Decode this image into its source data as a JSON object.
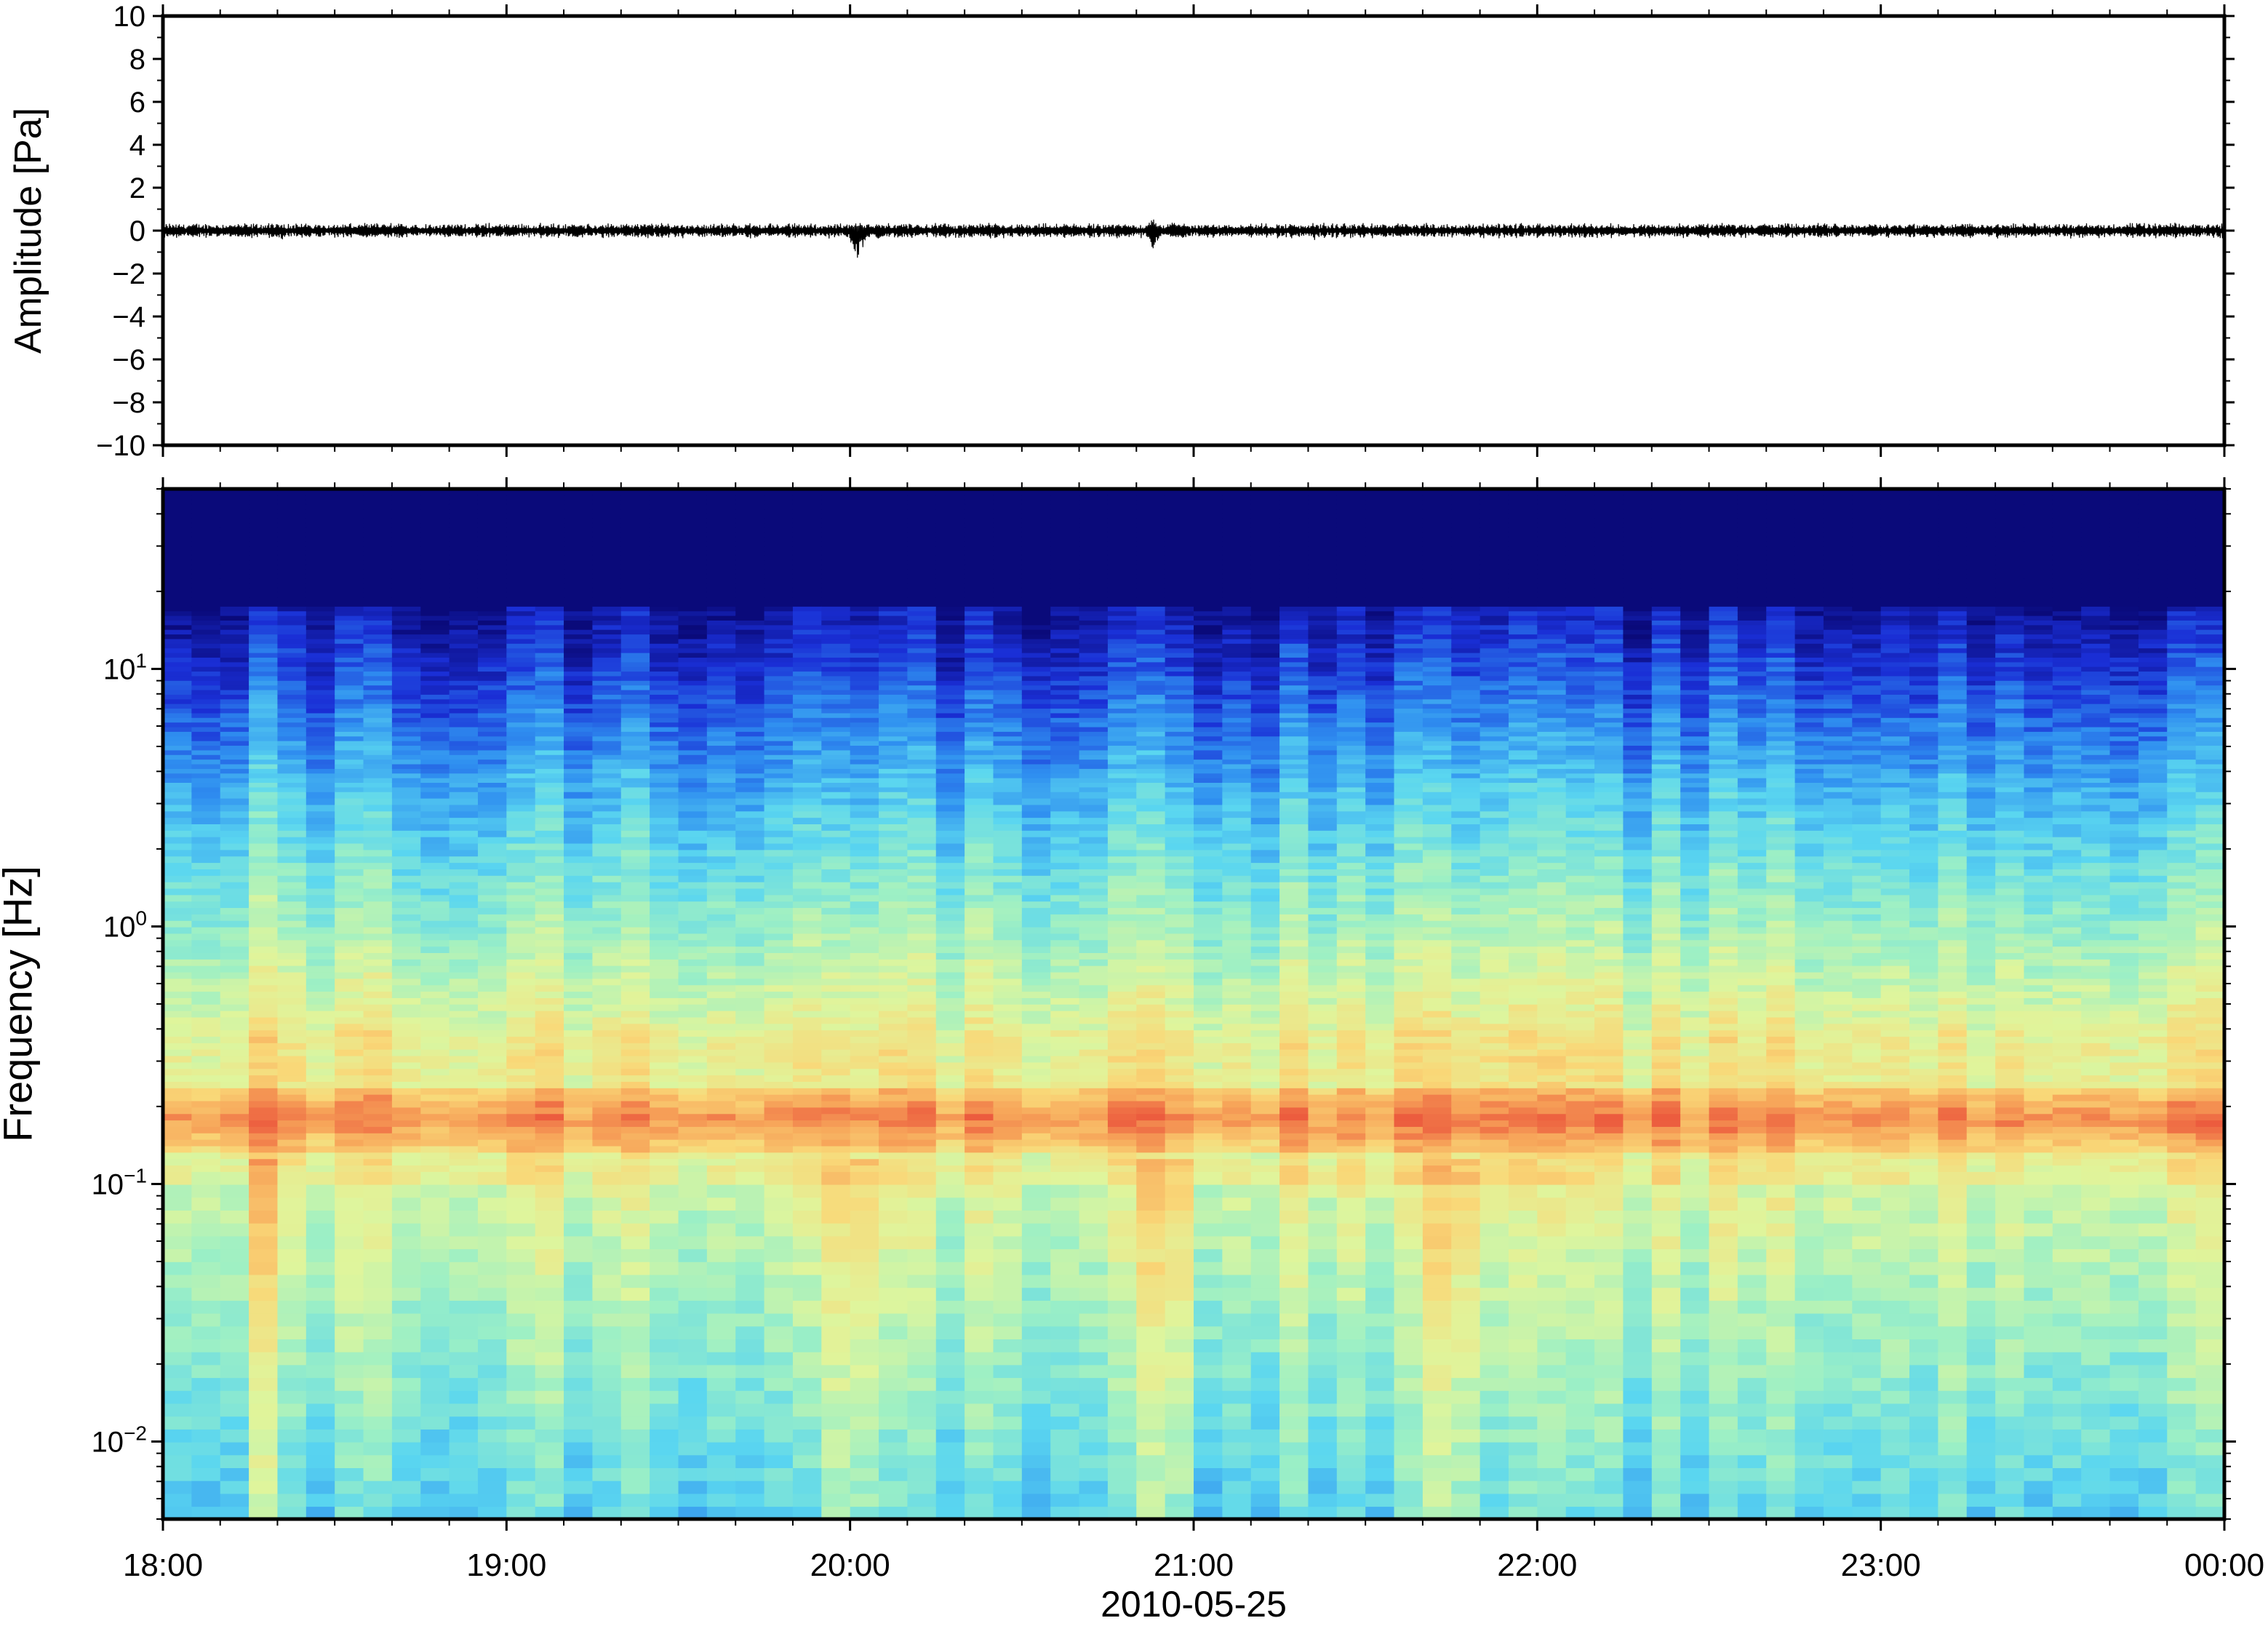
{
  "chart_data": [
    {
      "type": "line",
      "panel": "waveform",
      "ylabel": "Amplitude [Pa]",
      "ylim": [
        -10,
        10
      ],
      "yticks": [
        10,
        8,
        6,
        4,
        2,
        0,
        -2,
        -4,
        -6,
        -8,
        -10
      ],
      "ytick_labels": [
        "10",
        "8",
        "6",
        "4",
        "2",
        "0",
        "−2",
        "−4",
        "−6",
        "−8",
        "−10"
      ],
      "xlim_hours": [
        18,
        24
      ],
      "grid": false,
      "series_color": "#000000",
      "background_amplitude": 0.25,
      "events": [
        {
          "hour": 18.35,
          "peak": 0.4
        },
        {
          "hour": 19.2,
          "peak": 0.35
        },
        {
          "hour": 20.02,
          "max": 0.6,
          "min": -2.0
        },
        {
          "hour": 20.08,
          "max": 0.4,
          "min": -0.5
        },
        {
          "hour": 20.88,
          "max": 0.7,
          "min": -1.1
        },
        {
          "hour": 20.95,
          "max": 0.5,
          "min": -0.6
        },
        {
          "hour": 21.35,
          "peak": 0.35
        },
        {
          "hour": 22.55,
          "peak": 0.35
        }
      ]
    },
    {
      "type": "heatmap",
      "panel": "spectrogram",
      "ylabel": "Frequency [Hz]",
      "y_scale": "log",
      "ylim": [
        0.005,
        50
      ],
      "yticks": [
        10,
        1,
        0.1,
        0.01
      ],
      "ytick_labels": [
        {
          "base": "10",
          "exp": "1"
        },
        {
          "base": "10",
          "exp": "0"
        },
        {
          "base": "10",
          "exp": "−1"
        },
        {
          "base": "10",
          "exp": "−2"
        }
      ],
      "xlim_hours": [
        18,
        24
      ],
      "xticks_hours": [
        18,
        19,
        20,
        21,
        22,
        23,
        24
      ],
      "xtick_labels": [
        "18:00",
        "19:00",
        "20:00",
        "21:00",
        "22:00",
        "23:00",
        "00:00"
      ],
      "xlabel": "2010-05-25",
      "colormap": "jet-like",
      "colormap_stops": [
        "#0a0a7a",
        "#1a2fd6",
        "#2f8ff0",
        "#5ad6f0",
        "#9ef0c4",
        "#dff59c",
        "#f9d878",
        "#f7a65a",
        "#ec5c3e"
      ],
      "microseism_band_hz": 0.18,
      "energetic_columns_hours": [
        20.0,
        20.9,
        21.75,
        18.3
      ]
    }
  ]
}
